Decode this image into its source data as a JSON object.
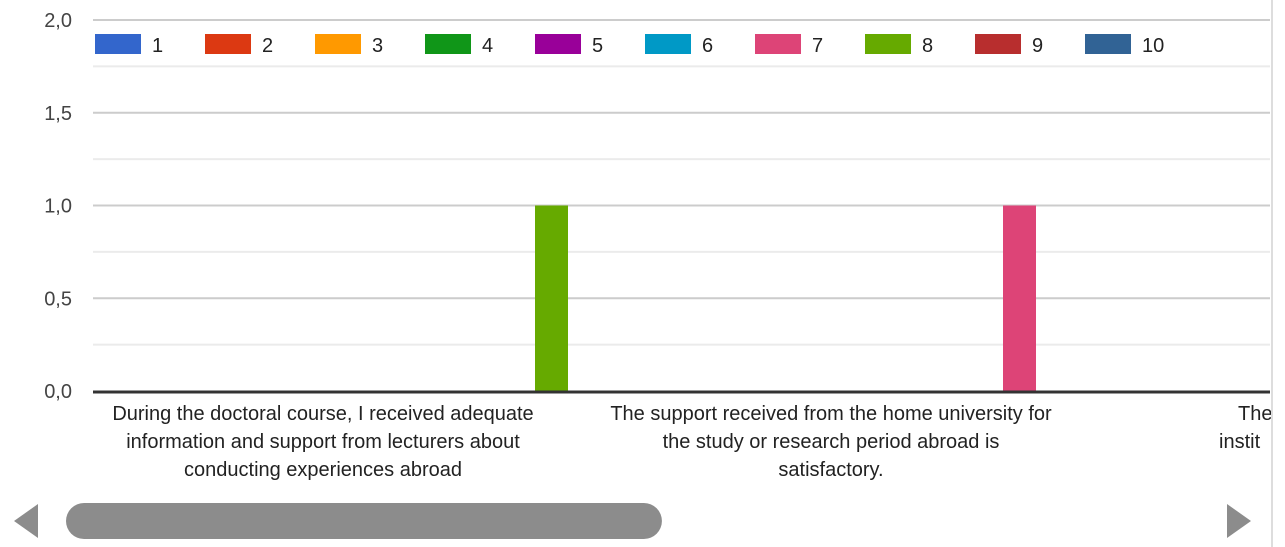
{
  "chart_data": {
    "type": "bar",
    "ylim": [
      0,
      2
    ],
    "y_ticks": [
      {
        "value": 0.0,
        "label": "0,0"
      },
      {
        "value": 0.5,
        "label": "0,5"
      },
      {
        "value": 1.0,
        "label": "1,0"
      },
      {
        "value": 1.5,
        "label": "1,5"
      },
      {
        "value": 2.0,
        "label": "2,0"
      }
    ],
    "grid": true,
    "legend_position": "top",
    "categories": [
      {
        "lines": [
          "During the doctoral course, I received adequate",
          "information and support from lecturers about",
          "conducting experiences abroad"
        ]
      },
      {
        "lines": [
          "The support received from the home university for",
          "the study or research period abroad is",
          "satisfactory."
        ]
      },
      {
        "lines": [
          "The",
          "instit"
        ]
      }
    ],
    "series": [
      {
        "name": "1",
        "color": "#3366cc",
        "values": [
          0,
          0,
          0
        ]
      },
      {
        "name": "2",
        "color": "#dc3912",
        "values": [
          0,
          0,
          0
        ]
      },
      {
        "name": "3",
        "color": "#ff9900",
        "values": [
          0,
          0,
          0
        ]
      },
      {
        "name": "4",
        "color": "#109618",
        "values": [
          0,
          0,
          0
        ]
      },
      {
        "name": "5",
        "color": "#990099",
        "values": [
          0,
          0,
          0
        ]
      },
      {
        "name": "6",
        "color": "#0099c6",
        "values": [
          0,
          0,
          0
        ]
      },
      {
        "name": "7",
        "color": "#dd4477",
        "values": [
          0,
          1,
          0
        ]
      },
      {
        "name": "8",
        "color": "#66aa00",
        "values": [
          1,
          0,
          0
        ]
      },
      {
        "name": "9",
        "color": "#b82e2e",
        "values": [
          0,
          0,
          0
        ]
      },
      {
        "name": "10",
        "color": "#316395",
        "values": [
          0,
          0,
          0
        ]
      }
    ]
  },
  "scrollbar": {
    "left_arrow_icon": "triangle-left-icon",
    "right_arrow_icon": "triangle-right-icon",
    "position_fraction": 0,
    "visible_fraction": 0.52
  }
}
